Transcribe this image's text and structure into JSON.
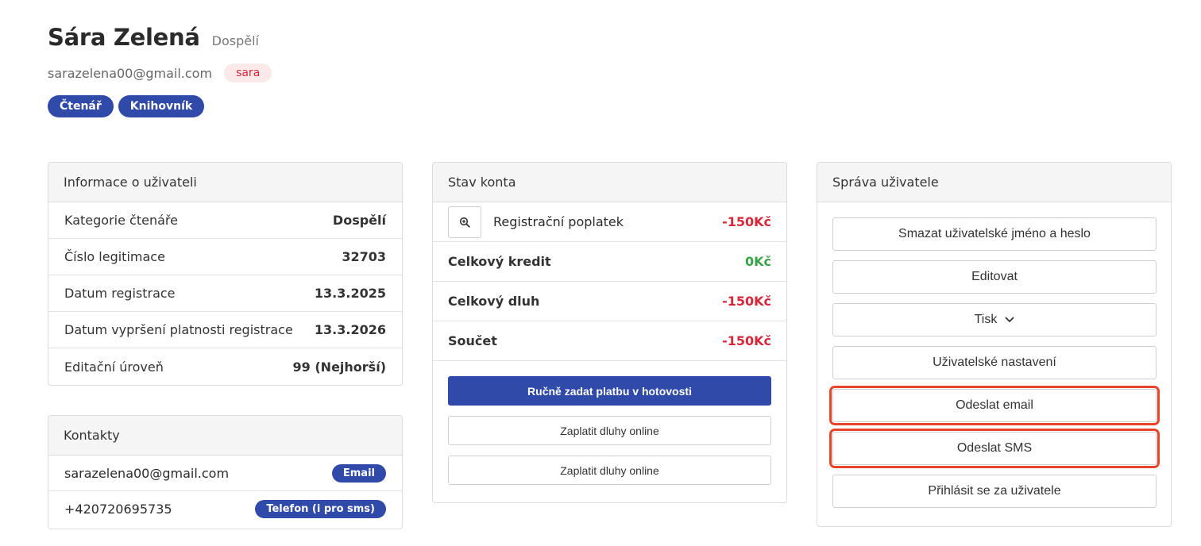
{
  "header": {
    "name": "Sára Zelená",
    "category": "Dospělí",
    "email": "sarazelena00@gmail.com",
    "username": "sara",
    "roles": [
      "Čtenář",
      "Knihovník"
    ]
  },
  "user_info": {
    "title": "Informace o uživateli",
    "rows": [
      {
        "label": "Kategorie čtenáře",
        "value": "Dospělí"
      },
      {
        "label": "Číslo legitimace",
        "value": "32703"
      },
      {
        "label": "Datum registrace",
        "value": "13.3.2025"
      },
      {
        "label": "Datum vypršení platnosti registrace",
        "value": "13.3.2026"
      },
      {
        "label": "Editační úroveň",
        "value": "99 (Nejhorší)"
      }
    ]
  },
  "contacts": {
    "title": "Kontakty",
    "rows": [
      {
        "value": "sarazelena00@gmail.com",
        "type": "Email"
      },
      {
        "value": "+420720695735",
        "type": "Telefon (i pro sms)"
      }
    ]
  },
  "account": {
    "title": "Stav konta",
    "fee_label": "Registrační poplatek",
    "fee_value": "-150Kč",
    "credit_label": "Celkový kredit",
    "credit_value": "0Kč",
    "debt_label": "Celkový dluh",
    "debt_value": "-150Kč",
    "sum_label": "Součet",
    "sum_value": "-150Kč",
    "manual_payment": "Ručně zadat platbu v hotovosti",
    "pay_online_1": "Zaplatit dluhy online",
    "pay_online_2": "Zaplatit dluhy online"
  },
  "management": {
    "title": "Správa uživatele",
    "delete_credentials": "Smazat uživatelské jméno a heslo",
    "edit": "Editovat",
    "print": "Tisk",
    "user_settings": "Uživatelské nastavení",
    "send_email": "Odeslat email",
    "send_sms": "Odeslat SMS",
    "login_as": "Přihlásit se za uživatele"
  },
  "colors": {
    "primary": "#2f4aa8",
    "danger": "#d6283a",
    "success": "#3aa24a",
    "highlight": "#e8442a"
  }
}
